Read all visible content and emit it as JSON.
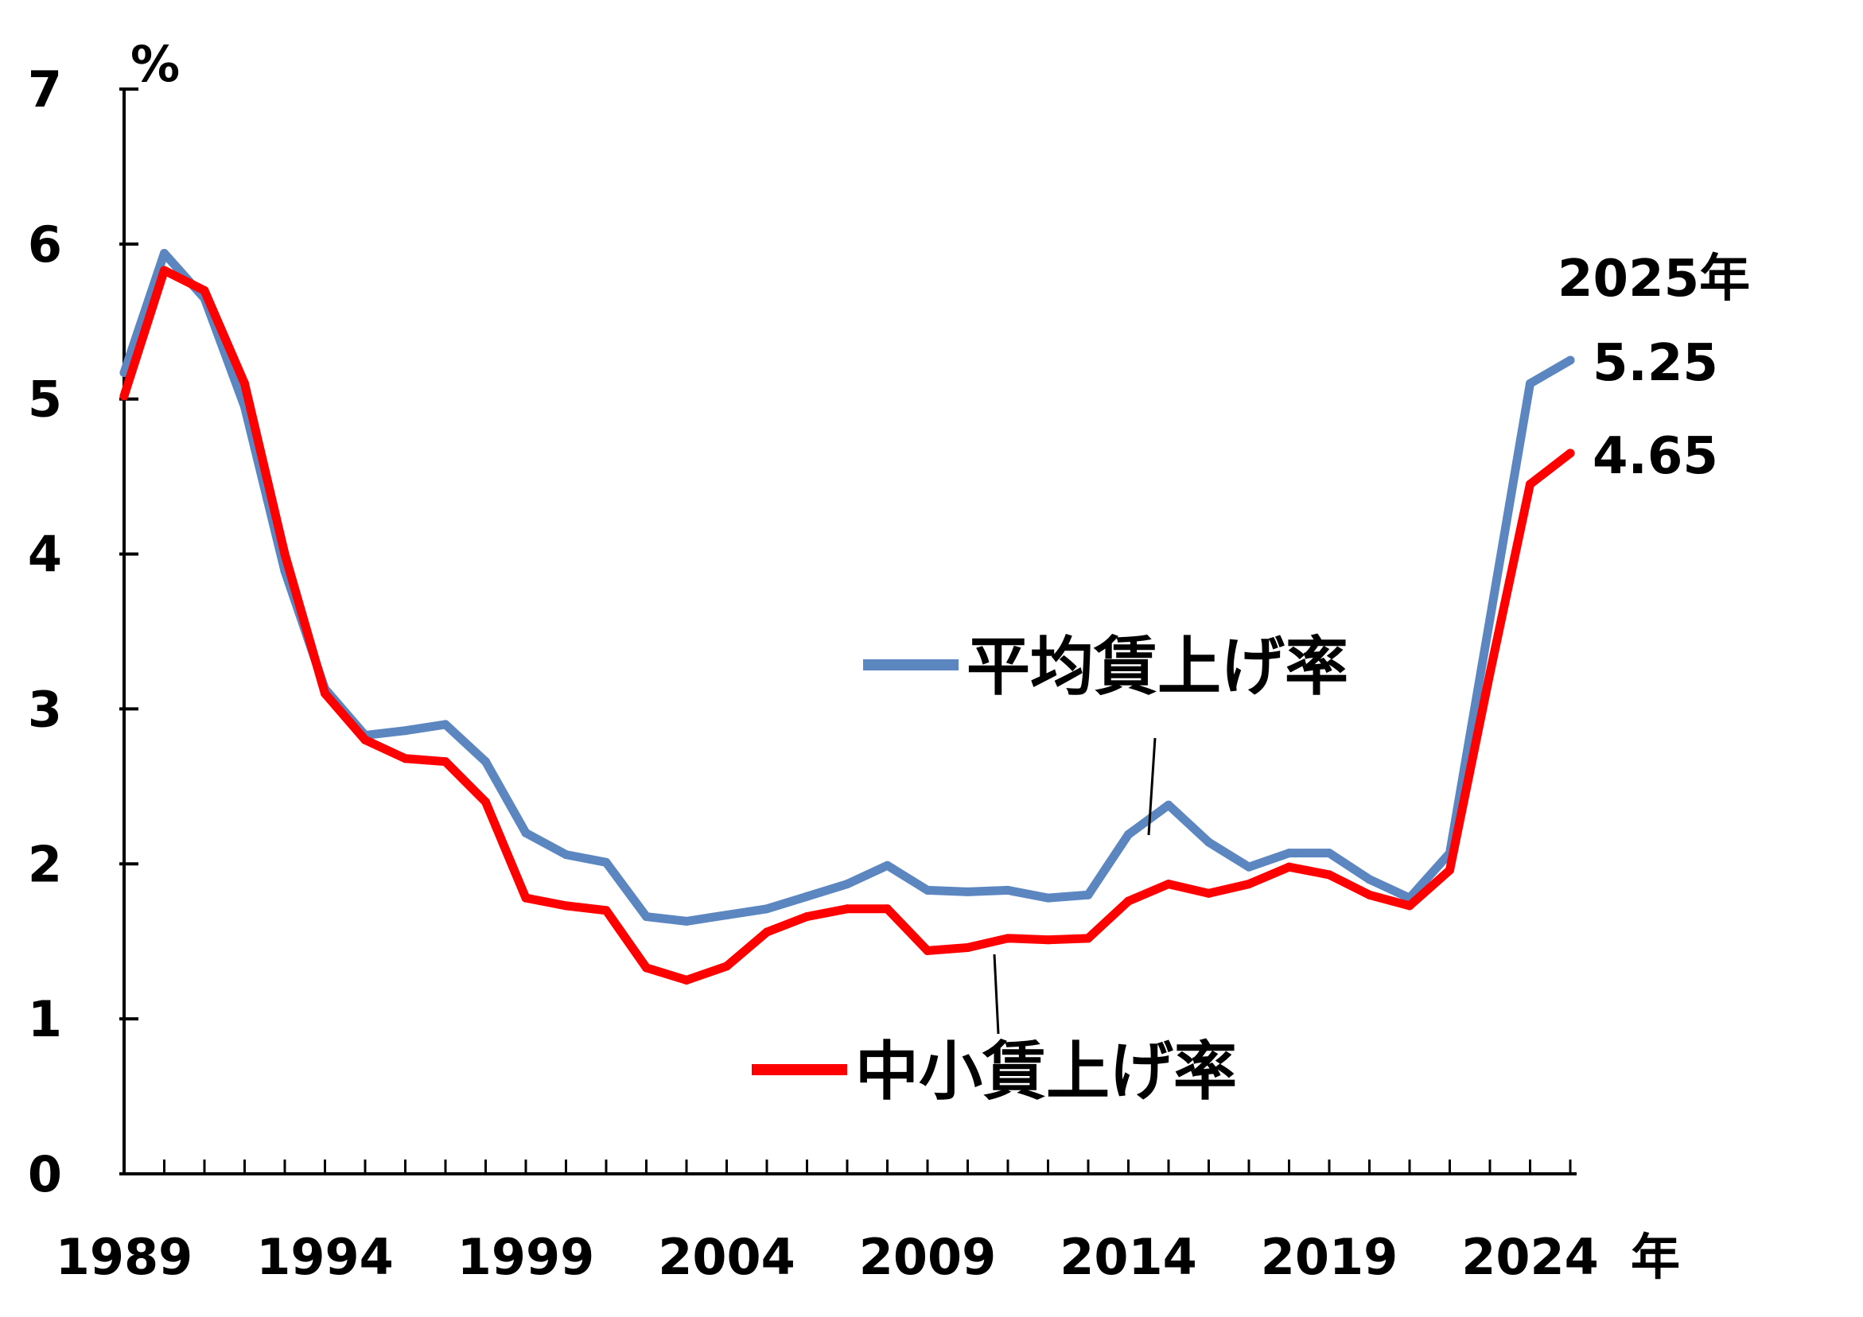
{
  "chart_data": {
    "type": "line",
    "title": "",
    "ylabel": "%",
    "xlabel": "年",
    "ylim": [
      0,
      7
    ],
    "xlim": [
      1989,
      2025
    ],
    "y_ticks": [
      "0",
      "1",
      "2",
      "3",
      "4",
      "5",
      "6",
      "7"
    ],
    "x_tick_labels": [
      "1989",
      "1994",
      "1999",
      "2004",
      "2009",
      "2014",
      "2019",
      "2024"
    ],
    "x": [
      1989,
      1990,
      1991,
      1992,
      1993,
      1994,
      1995,
      1996,
      1997,
      1998,
      1999,
      2000,
      2001,
      2002,
      2003,
      2004,
      2005,
      2006,
      2007,
      2008,
      2009,
      2010,
      2011,
      2012,
      2013,
      2014,
      2015,
      2016,
      2017,
      2018,
      2019,
      2020,
      2021,
      2022,
      2023,
      2024,
      2025
    ],
    "series": [
      {
        "name": "平均賃上げ率",
        "color": "#5b86c0",
        "values": [
          5.17,
          5.94,
          5.65,
          4.95,
          3.89,
          3.13,
          2.83,
          2.86,
          2.9,
          2.66,
          2.2,
          2.06,
          2.01,
          1.66,
          1.63,
          1.67,
          1.71,
          1.79,
          1.87,
          1.99,
          1.83,
          1.82,
          1.83,
          1.78,
          1.8,
          2.19,
          2.38,
          2.14,
          1.98,
          2.07,
          2.07,
          1.9,
          1.78,
          2.07,
          3.58,
          5.1,
          5.25
        ]
      },
      {
        "name": "中小賃上げ率",
        "color": "#ff0000",
        "values": [
          5.02,
          5.83,
          5.7,
          5.1,
          4.0,
          3.1,
          2.8,
          2.68,
          2.66,
          2.4,
          1.78,
          1.73,
          1.7,
          1.33,
          1.25,
          1.34,
          1.56,
          1.66,
          1.71,
          1.71,
          1.44,
          1.46,
          1.52,
          1.51,
          1.52,
          1.76,
          1.87,
          1.81,
          1.87,
          1.98,
          1.93,
          1.8,
          1.73,
          1.96,
          3.23,
          4.45,
          4.65
        ]
      }
    ],
    "annotations": {
      "year_label": "2025年",
      "avg_end_value": "5.25",
      "sme_end_value": "4.65"
    }
  }
}
